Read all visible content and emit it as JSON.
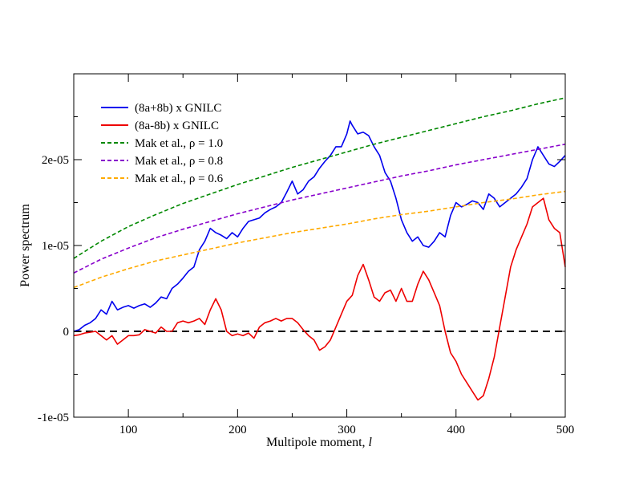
{
  "chart_data": {
    "type": "line",
    "title": "",
    "xlabel": "Multipole moment, ",
    "xlabel_var": "l",
    "ylabel": "Power spectrum",
    "xlim": [
      50,
      500
    ],
    "ylim": [
      -1e-05,
      3e-05
    ],
    "x_ticks": [
      100,
      200,
      300,
      400,
      500
    ],
    "x_tick_labels": [
      "100",
      "200",
      "300",
      "400",
      "500"
    ],
    "y_ticks": [
      -1e-05,
      0,
      1e-05,
      2e-05
    ],
    "y_tick_labels": [
      "-1e-05",
      "0",
      "1e-05",
      "2e-05"
    ],
    "grid": false,
    "legend_position": "top-left",
    "series": [
      {
        "name": "(8a+8b) x GNILC",
        "color": "#0000ee",
        "style": "solid",
        "x": [
          50,
          55,
          60,
          65,
          70,
          75,
          80,
          85,
          90,
          95,
          100,
          105,
          110,
          115,
          120,
          125,
          130,
          135,
          140,
          145,
          150,
          155,
          160,
          165,
          170,
          175,
          180,
          185,
          190,
          195,
          200,
          205,
          210,
          215,
          220,
          225,
          230,
          235,
          240,
          245,
          250,
          255,
          260,
          265,
          270,
          275,
          280,
          285,
          290,
          295,
          300,
          303,
          305,
          310,
          315,
          320,
          325,
          330,
          335,
          340,
          345,
          350,
          355,
          360,
          365,
          370,
          375,
          380,
          385,
          390,
          395,
          400,
          405,
          410,
          415,
          420,
          425,
          430,
          435,
          440,
          445,
          450,
          455,
          460,
          465,
          470,
          475,
          480,
          485,
          490,
          495,
          500
        ],
        "y": [
          0.0,
          2e-07,
          7e-07,
          1e-06,
          1.5e-06,
          2.5e-06,
          2e-06,
          3.5e-06,
          2.5e-06,
          2.8e-06,
          3e-06,
          2.7e-06,
          3e-06,
          3.2e-06,
          2.8e-06,
          3.3e-06,
          4e-06,
          3.8e-06,
          5e-06,
          5.5e-06,
          6.2e-06,
          7e-06,
          7.5e-06,
          9.5e-06,
          1.05e-05,
          1.2e-05,
          1.15e-05,
          1.12e-05,
          1.08e-05,
          1.15e-05,
          1.1e-05,
          1.2e-05,
          1.28e-05,
          1.3e-05,
          1.32e-05,
          1.38e-05,
          1.42e-05,
          1.45e-05,
          1.5e-05,
          1.62e-05,
          1.75e-05,
          1.6e-05,
          1.65e-05,
          1.75e-05,
          1.8e-05,
          1.9e-05,
          1.98e-05,
          2.05e-05,
          2.15e-05,
          2.15e-05,
          2.3e-05,
          2.45e-05,
          2.4e-05,
          2.3e-05,
          2.32e-05,
          2.28e-05,
          2.15e-05,
          2.05e-05,
          1.85e-05,
          1.75e-05,
          1.55e-05,
          1.3e-05,
          1.15e-05,
          1.05e-05,
          1.1e-05,
          1e-05,
          9.8e-06,
          1.05e-05,
          1.15e-05,
          1.1e-05,
          1.35e-05,
          1.5e-05,
          1.45e-05,
          1.48e-05,
          1.52e-05,
          1.5e-05,
          1.42e-05,
          1.6e-05,
          1.55e-05,
          1.45e-05,
          1.5e-05,
          1.55e-05,
          1.6e-05,
          1.68e-05,
          1.78e-05,
          2e-05,
          2.15e-05,
          2.05e-05,
          1.95e-05,
          1.92e-05,
          1.98e-05,
          2.05e-05
        ]
      },
      {
        "name": "(8a-8b) x GNILC",
        "color": "#ee0000",
        "style": "solid",
        "x": [
          50,
          55,
          60,
          65,
          70,
          75,
          80,
          85,
          90,
          95,
          100,
          105,
          110,
          115,
          120,
          125,
          130,
          135,
          140,
          145,
          150,
          155,
          160,
          165,
          170,
          175,
          180,
          185,
          190,
          195,
          200,
          205,
          210,
          215,
          220,
          225,
          230,
          235,
          240,
          245,
          250,
          255,
          260,
          265,
          270,
          275,
          280,
          285,
          290,
          295,
          300,
          305,
          310,
          315,
          320,
          325,
          330,
          335,
          340,
          345,
          350,
          355,
          360,
          365,
          370,
          375,
          380,
          385,
          390,
          395,
          400,
          405,
          410,
          415,
          420,
          425,
          430,
          435,
          440,
          445,
          450,
          455,
          460,
          465,
          470,
          475,
          480,
          485,
          490,
          495,
          500
        ],
        "y": [
          -5e-07,
          -4e-07,
          -2e-07,
          -1e-07,
          0.0,
          -5e-07,
          -1e-06,
          -5e-07,
          -1.5e-06,
          -1e-06,
          -5e-07,
          -5e-07,
          -4e-07,
          2e-07,
          0.0,
          -2e-07,
          5e-07,
          0.0,
          0.0,
          1e-06,
          1.2e-06,
          1e-06,
          1.2e-06,
          1.5e-06,
          8e-07,
          2.5e-06,
          3.8e-06,
          2.5e-06,
          0.0,
          -5e-07,
          -3e-07,
          -5e-07,
          -2e-07,
          -8e-07,
          5e-07,
          1e-06,
          1.2e-06,
          1.5e-06,
          1.2e-06,
          1.5e-06,
          1.5e-06,
          1e-06,
          2e-07,
          -5e-07,
          -1e-06,
          -2.2e-06,
          -1.8e-06,
          -1e-06,
          5e-07,
          2e-06,
          3.5e-06,
          4.2e-06,
          6.5e-06,
          7.8e-06,
          6e-06,
          4e-06,
          3.5e-06,
          4.5e-06,
          4.8e-06,
          3.5e-06,
          5e-06,
          3.5e-06,
          3.5e-06,
          5.5e-06,
          7e-06,
          6e-06,
          4.5e-06,
          3e-06,
          0.0,
          -2.5e-06,
          -3.5e-06,
          -5e-06,
          -6e-06,
          -7e-06,
          -8e-06,
          -7.5e-06,
          -5.5e-06,
          -3e-06,
          5e-07,
          4e-06,
          7.5e-06,
          9.5e-06,
          1.1e-05,
          1.25e-05,
          1.45e-05,
          1.5e-05,
          1.55e-05,
          1.3e-05,
          1.2e-05,
          1.15e-05,
          7.5e-06
        ]
      },
      {
        "name": "Mak et al., ρ = 1.0",
        "color": "#008800",
        "style": "dashed",
        "x": [
          50,
          75,
          100,
          125,
          150,
          175,
          200,
          225,
          250,
          275,
          300,
          325,
          350,
          375,
          400,
          425,
          450,
          475,
          500
        ],
        "y": [
          8.5e-06,
          1.05e-05,
          1.22e-05,
          1.36e-05,
          1.49e-05,
          1.6e-05,
          1.71e-05,
          1.81e-05,
          1.91e-05,
          2e-05,
          2.09e-05,
          2.18e-05,
          2.26e-05,
          2.34e-05,
          2.42e-05,
          2.5e-05,
          2.57e-05,
          2.65e-05,
          2.72e-05
        ]
      },
      {
        "name": "Mak et al., ρ = 0.8",
        "color": "#8800cc",
        "style": "dashed",
        "x": [
          50,
          75,
          100,
          125,
          150,
          175,
          200,
          225,
          250,
          275,
          300,
          325,
          350,
          375,
          400,
          425,
          450,
          475,
          500
        ],
        "y": [
          6.8e-06,
          8.4e-06,
          9.7e-06,
          1.09e-05,
          1.19e-05,
          1.28e-05,
          1.37e-05,
          1.45e-05,
          1.53e-05,
          1.6e-05,
          1.67e-05,
          1.74e-05,
          1.81e-05,
          1.87e-05,
          1.94e-05,
          2e-05,
          2.06e-05,
          2.12e-05,
          2.18e-05
        ]
      },
      {
        "name": "Mak et al., ρ = 0.6",
        "color": "#ffaa00",
        "style": "dashed",
        "x": [
          50,
          75,
          100,
          125,
          150,
          175,
          200,
          225,
          250,
          275,
          300,
          325,
          350,
          375,
          400,
          425,
          450,
          475,
          500
        ],
        "y": [
          5.1e-06,
          6.3e-06,
          7.3e-06,
          8.2e-06,
          8.9e-06,
          9.6e-06,
          1.03e-05,
          1.09e-05,
          1.15e-05,
          1.2e-05,
          1.25e-05,
          1.31e-05,
          1.36e-05,
          1.4e-05,
          1.45e-05,
          1.5e-05,
          1.54e-05,
          1.59e-05,
          1.63e-05
        ]
      }
    ],
    "reference_lines": [
      {
        "y": 0,
        "color": "#000000",
        "style": "dashed"
      }
    ]
  }
}
